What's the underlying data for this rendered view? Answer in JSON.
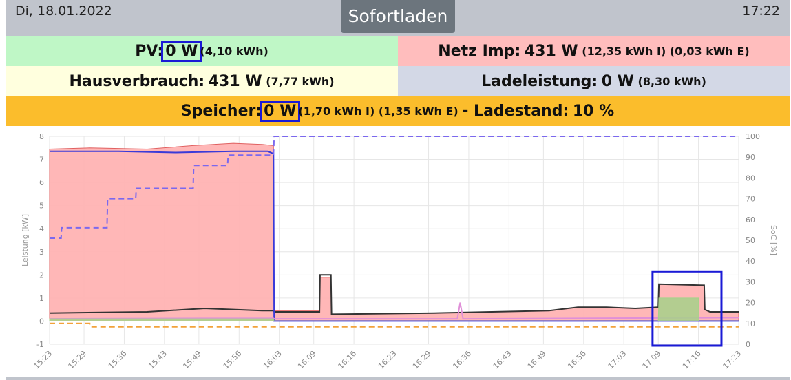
{
  "header": {
    "date": "Di, 18.01.2022",
    "time": "17:22",
    "mode_button": "Sofortladen"
  },
  "summary": {
    "pv": {
      "label": "PV:",
      "value": "0 W",
      "detail": "(4,10 kWh)"
    },
    "netz": {
      "label": "Netz Imp:",
      "value": "431 W",
      "detail": "(12,35 kWh I) (0,03 kWh E)"
    },
    "haus": {
      "label": "Hausverbrauch:",
      "value": "431 W",
      "detail": "(7,77 kWh)"
    },
    "lade": {
      "label": "Ladeleistung:",
      "value": "0 W",
      "detail": "(8,30 kWh)"
    },
    "speicher": {
      "label": "Speicher:",
      "value": "0 W",
      "detail": "(1,70 kWh I) (1,35 kWh E)",
      "soc_label": "- Ladestand:",
      "soc_value": "10 %"
    }
  },
  "colors": {
    "header_bg": "#c0c4cc",
    "pv_bg": "#bff7c6",
    "netz_bg": "#ffbdbd",
    "haus_bg": "#ffffde",
    "lade_bg": "#d3d8e6",
    "speicher_bg": "#fbbd2c",
    "highlight": "#1a1ad6"
  },
  "chart_data": {
    "type": "area",
    "ylabel": "Leistung [kW]",
    "y2label": "SoC [%]",
    "ylim": [
      -1,
      8
    ],
    "y2lim": [
      0,
      100
    ],
    "yticks": [
      "-1",
      "0",
      "1",
      "2",
      "3",
      "4",
      "5",
      "6",
      "7",
      "8"
    ],
    "y2ticks": [
      "0",
      "10",
      "20",
      "30",
      "40",
      "50",
      "60",
      "70",
      "80",
      "90",
      "100"
    ],
    "xlim": [
      "15:23",
      "17:23"
    ],
    "xticks": [
      "15:23",
      "15:29",
      "15:36",
      "15:43",
      "15:49",
      "15:56",
      "16:03",
      "16:09",
      "16:16",
      "16:23",
      "16:29",
      "16:36",
      "16:43",
      "16:49",
      "16:56",
      "17:03",
      "17:09",
      "17:16",
      "17:23"
    ],
    "grid": true,
    "series": [
      {
        "color": "#ffb3b3",
        "stroke": "#e06060",
        "kind": "area",
        "points": [
          [
            "15:23",
            7.45
          ],
          [
            "15:30",
            7.5
          ],
          [
            "15:40",
            7.45
          ],
          [
            "15:48",
            7.6
          ],
          [
            "15:55",
            7.7
          ],
          [
            "16:00",
            7.65
          ],
          [
            "16:02",
            7.6
          ],
          [
            "16:02.1",
            0.45
          ],
          [
            "16:10",
            0.45
          ],
          [
            "16:10.1",
            1.9
          ],
          [
            "16:12",
            1.9
          ],
          [
            "16:12.1",
            0.3
          ],
          [
            "16:30",
            0.35
          ],
          [
            "16:40",
            0.4
          ],
          [
            "16:50",
            0.45
          ],
          [
            "16:55",
            0.6
          ],
          [
            "17:00",
            0.6
          ],
          [
            "17:05",
            0.55
          ],
          [
            "17:09",
            0.6
          ],
          [
            "17:09.1",
            1.6
          ],
          [
            "17:17",
            1.55
          ],
          [
            "17:17.1",
            0.5
          ],
          [
            "17:18",
            0.4
          ],
          [
            "17:23",
            0.4
          ]
        ]
      },
      {
        "color": "#333333",
        "kind": "line",
        "points": [
          [
            "15:23",
            0.35
          ],
          [
            "15:40",
            0.4
          ],
          [
            "15:50",
            0.55
          ],
          [
            "16:00",
            0.45
          ],
          [
            "16:02",
            0.45
          ],
          [
            "16:02.1",
            0.4
          ],
          [
            "16:10",
            0.4
          ],
          [
            "16:10.1",
            2.0
          ],
          [
            "16:12",
            2.0
          ],
          [
            "16:12.1",
            0.3
          ],
          [
            "16:30",
            0.35
          ],
          [
            "16:40",
            0.4
          ],
          [
            "16:50",
            0.45
          ],
          [
            "16:55",
            0.6
          ],
          [
            "17:00",
            0.6
          ],
          [
            "17:05",
            0.55
          ],
          [
            "17:09",
            0.6
          ],
          [
            "17:09.1",
            1.6
          ],
          [
            "17:17",
            1.55
          ],
          [
            "17:17.1",
            0.5
          ],
          [
            "17:18",
            0.4
          ],
          [
            "17:23",
            0.4
          ]
        ]
      },
      {
        "color": "#3a3ad8",
        "kind": "line",
        "points": [
          [
            "15:23",
            7.35
          ],
          [
            "15:35",
            7.35
          ],
          [
            "15:45",
            7.3
          ],
          [
            "15:55",
            7.35
          ],
          [
            "16:01",
            7.35
          ],
          [
            "16:02",
            7.25
          ],
          [
            "16:02.1",
            0.0
          ],
          [
            "17:23",
            0.0
          ]
        ]
      },
      {
        "color": "#e08fd8",
        "kind": "line",
        "points": [
          [
            "15:23",
            0.1
          ],
          [
            "15:50",
            0.12
          ],
          [
            "16:02",
            0.12
          ],
          [
            "16:02.1",
            0.1
          ],
          [
            "16:34",
            0.1
          ],
          [
            "16:34.5",
            0.8
          ],
          [
            "16:35",
            0.1
          ],
          [
            "17:23",
            0.15
          ]
        ]
      },
      {
        "color": "#a6d18a",
        "kind": "area",
        "points": [
          [
            "15:23",
            0.1
          ],
          [
            "16:02",
            0.1
          ],
          [
            "16:02.1",
            0.0
          ],
          [
            "17:09",
            0.0
          ],
          [
            "17:09.1",
            1.0
          ],
          [
            "17:16",
            1.0
          ],
          [
            "17:16.1",
            0.0
          ],
          [
            "17:23",
            0.0
          ]
        ]
      },
      {
        "color": "#f2a23a",
        "kind": "dashed",
        "points": [
          [
            "15:23",
            -0.1
          ],
          [
            "15:30",
            -0.1
          ],
          [
            "15:30.1",
            -0.25
          ],
          [
            "17:23",
            -0.25
          ]
        ]
      },
      {
        "color": "#7b68ee",
        "kind": "dashed",
        "axis": "y2",
        "points": [
          [
            "15:23",
            51
          ],
          [
            "15:25",
            51
          ],
          [
            "15:25.1",
            56
          ],
          [
            "15:33",
            56
          ],
          [
            "15:33.1",
            70
          ],
          [
            "15:38",
            70
          ],
          [
            "15:38.1",
            75
          ],
          [
            "15:48",
            75
          ],
          [
            "15:48.1",
            86
          ],
          [
            "15:54",
            86
          ],
          [
            "15:54.1",
            91
          ],
          [
            "16:02",
            91
          ],
          [
            "16:02.1",
            100
          ],
          [
            "17:23",
            100
          ]
        ]
      }
    ],
    "highlight_box": {
      "x": [
        "17:08",
        "17:20"
      ],
      "y": [
        -1,
        2.15
      ]
    }
  }
}
